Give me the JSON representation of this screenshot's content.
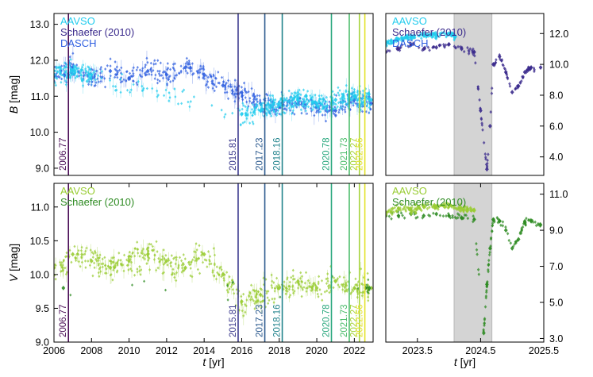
{
  "chart_data": [
    {
      "type": "scatter",
      "panel": "top-left",
      "ylabel_var": "B",
      "ylabel_unit": "[mag]",
      "xlim": [
        2006,
        2023
      ],
      "ylim": [
        13.3,
        8.8
      ],
      "yticks": [
        9.0,
        10.0,
        11.0,
        12.0,
        13.0
      ],
      "ytick_labels": [
        "9.0",
        "10.0",
        "11.0",
        "12.0",
        "13.0"
      ],
      "legend": [
        {
          "name": "AAVSO",
          "color": "#22ccee"
        },
        {
          "name": "Schaefer (2010)",
          "color": "#3a2a8c"
        },
        {
          "name": "DASCH",
          "color": "#2f5fe0"
        }
      ],
      "series": [
        {
          "name": "DASCH",
          "color": "#2f5fe0",
          "x": [
            2006.0,
            2007.0,
            2008.0,
            2009.0,
            2010.0,
            2011.0,
            2012.0,
            2013.0,
            2014.0,
            2015.0,
            2016.0,
            2017.0,
            2018.0,
            2019.0,
            2020.0,
            2021.0,
            2022.0,
            2022.9
          ],
          "y": [
            11.6,
            11.8,
            11.5,
            11.7,
            11.5,
            11.7,
            11.6,
            11.8,
            11.6,
            11.3,
            11.1,
            10.8,
            10.7,
            10.8,
            10.7,
            10.6,
            10.9,
            10.8
          ]
        },
        {
          "name": "AAVSO",
          "color": "#22ccee",
          "x": [
            2006.0,
            2007.0,
            2008.0,
            2016.0,
            2017.0,
            2018.0,
            2019.0,
            2020.0,
            2021.0,
            2022.0,
            2022.9
          ],
          "y": [
            11.6,
            11.7,
            11.6,
            10.5,
            10.6,
            10.8,
            10.9,
            10.8,
            10.9,
            11.0,
            10.9
          ]
        }
      ]
    },
    {
      "type": "scatter",
      "panel": "top-right",
      "xlim": [
        2023.0,
        2025.5
      ],
      "ylim": [
        13.3,
        2.8
      ],
      "yticks": [
        4.0,
        6.0,
        8.0,
        10.0,
        12.0
      ],
      "ytick_labels": [
        "4.0",
        "6.0",
        "8.0",
        "10.0",
        "12.0"
      ],
      "shaded_span": [
        2024.08,
        2024.68
      ],
      "legend": [
        {
          "name": "AAVSO",
          "color": "#22ccee"
        },
        {
          "name": "Schaefer (2010)",
          "color": "#3a2a8c"
        },
        {
          "name": "DASCH",
          "color": "#2f5fe0"
        }
      ],
      "series": [
        {
          "name": "Schaefer (2010)",
          "color": "#3a2a8c",
          "x": [
            2023.0,
            2023.2,
            2023.4,
            2023.6,
            2023.8,
            2024.0,
            2024.2,
            2024.4,
            2024.5,
            2024.6,
            2024.65,
            2024.7,
            2024.8,
            2024.9,
            2025.0,
            2025.1,
            2025.2,
            2025.3,
            2025.45
          ],
          "y": [
            10.8,
            11.0,
            11.3,
            11.0,
            11.1,
            11.3,
            11.0,
            10.8,
            7.0,
            3.2,
            6.0,
            10.0,
            10.5,
            9.5,
            8.2,
            8.6,
            9.5,
            9.8,
            9.8
          ]
        },
        {
          "name": "AAVSO",
          "color": "#22ccee",
          "x": [
            2023.0,
            2023.2,
            2023.4,
            2023.6,
            2023.8,
            2024.0,
            2024.1
          ],
          "y": [
            11.3,
            11.6,
            11.8,
            11.9,
            11.9,
            12.0,
            11.8
          ]
        }
      ]
    },
    {
      "type": "scatter",
      "panel": "bottom-left",
      "ylabel_var": "V",
      "ylabel_unit": "[mag]",
      "xlabel_var": "t",
      "xlabel_unit": "[yr]",
      "xlim": [
        2006,
        2023
      ],
      "ylim": [
        11.35,
        9.0
      ],
      "xticks": [
        2006,
        2008,
        2010,
        2012,
        2014,
        2016,
        2018,
        2020,
        2022
      ],
      "xtick_labels": [
        "2006",
        "2008",
        "2010",
        "2012",
        "2014",
        "2016",
        "2018",
        "2020",
        "2022"
      ],
      "yticks": [
        9.0,
        9.5,
        10.0,
        10.5,
        11.0
      ],
      "ytick_labels": [
        "9.0",
        "9.5",
        "10.0",
        "10.5",
        "11.0"
      ],
      "legend": [
        {
          "name": "AAVSO",
          "color": "#99cc33"
        },
        {
          "name": "Schaefer (2010)",
          "color": "#2e8b22"
        }
      ],
      "series": [
        {
          "name": "AAVSO",
          "color": "#99cc33",
          "x": [
            2006.0,
            2007.0,
            2008.0,
            2009.0,
            2010.0,
            2011.0,
            2012.0,
            2013.0,
            2014.0,
            2015.0,
            2016.0,
            2017.0,
            2018.0,
            2019.0,
            2020.0,
            2021.0,
            2022.0,
            2022.9
          ],
          "y": [
            10.1,
            10.3,
            10.2,
            10.1,
            10.2,
            10.3,
            10.2,
            10.1,
            10.3,
            10.0,
            9.6,
            9.7,
            9.8,
            9.9,
            9.8,
            9.9,
            9.8,
            9.8
          ]
        },
        {
          "name": "Schaefer (2010)",
          "color": "#2e8b22",
          "x": [
            2006.5,
            2022.6,
            2022.8
          ],
          "y": [
            9.8,
            9.8,
            9.8
          ]
        }
      ]
    },
    {
      "type": "scatter",
      "panel": "bottom-right",
      "xlabel_var": "t",
      "xlabel_unit": "[yr]",
      "xlim": [
        2023.0,
        2025.5
      ],
      "ylim": [
        11.6,
        2.8
      ],
      "xticks": [
        2023.5,
        2024.5,
        2025.5
      ],
      "xtick_labels": [
        "2023.5",
        "2024.5",
        "2025.5"
      ],
      "yticks": [
        3.0,
        5.0,
        7.0,
        9.0,
        11.0
      ],
      "ytick_labels": [
        "3.0",
        "5.0",
        "7.0",
        "9.0",
        "11.0"
      ],
      "shaded_span": [
        2024.08,
        2024.68
      ],
      "legend": [
        {
          "name": "AAVSO",
          "color": "#99cc33"
        },
        {
          "name": "Schaefer (2010)",
          "color": "#2e8b22"
        }
      ],
      "series": [
        {
          "name": "Schaefer (2010)",
          "color": "#2e8b22",
          "x": [
            2023.0,
            2023.2,
            2023.4,
            2023.6,
            2023.8,
            2024.0,
            2024.2,
            2024.4,
            2024.55,
            2024.6,
            2024.65,
            2024.7,
            2024.8,
            2024.9,
            2025.0,
            2025.1,
            2025.2,
            2025.3,
            2025.45
          ],
          "y": [
            9.8,
            9.8,
            9.9,
            9.8,
            9.9,
            9.8,
            9.7,
            9.6,
            3.3,
            6.0,
            8.0,
            9.6,
            9.5,
            9.0,
            8.0,
            8.5,
            9.5,
            9.5,
            9.3
          ]
        },
        {
          "name": "AAVSO",
          "color": "#99cc33",
          "x": [
            2023.0,
            2023.2,
            2023.4,
            2023.6,
            2023.8,
            2024.0,
            2024.2,
            2024.4
          ],
          "y": [
            10.0,
            10.2,
            10.1,
            10.3,
            10.3,
            10.4,
            10.2,
            10.1
          ]
        }
      ]
    }
  ],
  "event_lines": [
    {
      "label": "2006.77",
      "year": 2006.77,
      "color": "#4a0d56"
    },
    {
      "label": "2015.81",
      "year": 2015.81,
      "color": "#3b3a8e"
    },
    {
      "label": "2017.23",
      "year": 2017.23,
      "color": "#2d5b8f"
    },
    {
      "label": "2018.16",
      "year": 2018.16,
      "color": "#21838c"
    },
    {
      "label": "2020.78",
      "year": 2020.78,
      "color": "#2aa87e"
    },
    {
      "label": "2021.73",
      "year": 2021.73,
      "color": "#4cbc6b"
    },
    {
      "label": "2022.27",
      "year": 2022.27,
      "color": "#a6d43d"
    },
    {
      "label": "2022.56",
      "year": 2022.56,
      "color": "#e3e22a"
    }
  ]
}
